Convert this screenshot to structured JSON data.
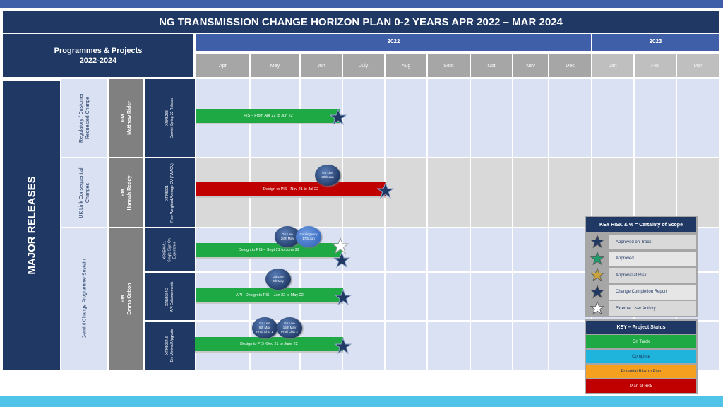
{
  "title": "NG TRANSMISSION CHANGE HORIZON PLAN 0-2 YEARS APR 2022 – MAR 2024",
  "programmes": {
    "line1": "Programmes & Projects",
    "line2": "2022-2024"
  },
  "years": [
    "2022",
    "2023"
  ],
  "months": [
    "Apr",
    "May",
    "Jun",
    "July",
    "Aug",
    "Sept",
    "Oct",
    "Nov",
    "Dec",
    "Jan",
    "Feb",
    "Mar"
  ],
  "major_releases": "MAJOR RELEASES",
  "groups": [
    {
      "category": "Regulatory / Customer Requested Change",
      "pm": "PM",
      "pm_name": "Matthew Rider"
    },
    {
      "category": "UK Link Consequential Changes",
      "pm": "PM",
      "pm_name": "Hannah Reddy"
    },
    {
      "category": "Gemini Change Programme Sustain",
      "pm": "PM",
      "pm_name": "Emma Catton"
    }
  ],
  "projects": [
    {
      "code": "XRN5283",
      "name": "Gemini Spring 22 Release",
      "bar_label": "PIS – From Apr 22 to Jun 22"
    },
    {
      "code": "XRN5021",
      "name": "Flow Weighted Average CV (FWACV)",
      "bar_label": "Design to PIS - Nov 21 to Jul 22"
    },
    {
      "code": "XRN5064.1",
      "name": "Single Sign On Experience",
      "bar_label": "Design to PIS – Sept 21 to June 22"
    },
    {
      "code": "XRN5064.2",
      "name": "API Enhancements",
      "bar_label": "API - Design to PIS – Jan 22 to May 22"
    },
    {
      "code": "XRN5064.3",
      "name": "Die Minimal Upgrade",
      "bar_label": "Design to PIS -Dec 21 to June 22"
    }
  ],
  "bubbles": [
    {
      "l1": "Go Live",
      "l2": "30th Jun",
      "l3": ""
    },
    {
      "l1": "Go Live",
      "l2": "28th May",
      "l3": ""
    },
    {
      "l1": "Contingency",
      "l2": "17th Jun",
      "l3": ""
    },
    {
      "l1": "Go Live",
      "l2": "8th May",
      "l3": ""
    },
    {
      "l1": "Go Live",
      "l2": "8th May",
      "l3": "Prod ChG 1"
    },
    {
      "l1": "Go Live",
      "l2": "15th May",
      "l3": "Prod ChG 2"
    }
  ],
  "key_risk": {
    "title": "KEY RISK & % = Certainty of Scope",
    "items": [
      {
        "label": "Approved on Track",
        "color": "#1f3864"
      },
      {
        "label": "Approved",
        "color": "#1e9e6a"
      },
      {
        "label": "Approval at Risk",
        "color": "#c9a43c"
      },
      {
        "label": "Change Completion Report",
        "color": "#1f3864"
      },
      {
        "label": "External User Activity",
        "color": "#ffffff"
      }
    ]
  },
  "key_status": {
    "title": "KEY – Project Status",
    "items": [
      {
        "label": "On Track",
        "color": "#1ea945",
        "text_color": "#ffffff"
      },
      {
        "label": "Complete",
        "color": "#1eb4dc",
        "text_color": "#1f3864"
      },
      {
        "label": "Potential Risk to Plan",
        "color": "#f5a01e",
        "text_color": "#1f3864"
      },
      {
        "label": "Plan at Risk",
        "color": "#c00000",
        "text_color": "#ffffff"
      }
    ]
  }
}
